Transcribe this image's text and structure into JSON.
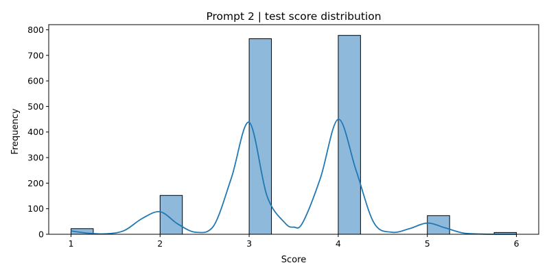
{
  "chart_data": {
    "type": "bar",
    "title": "Prompt 2 | test score distribution",
    "xlabel": "Score",
    "ylabel": "Frequency",
    "xlim": [
      0.75,
      6.25
    ],
    "ylim": [
      0,
      820
    ],
    "xticks": [
      1,
      2,
      3,
      4,
      5,
      6
    ],
    "yticks": [
      0,
      100,
      200,
      300,
      400,
      500,
      600,
      700,
      800
    ],
    "bin_width": 0.25,
    "bins": [
      {
        "start": 1.0,
        "value": 22
      },
      {
        "start": 2.0,
        "value": 152
      },
      {
        "start": 3.0,
        "value": 765
      },
      {
        "start": 4.0,
        "value": 778
      },
      {
        "start": 5.0,
        "value": 73
      },
      {
        "start": 5.75,
        "value": 7
      }
    ],
    "kde": {
      "name": "",
      "x": [
        1.0,
        1.2,
        1.4,
        1.6,
        1.8,
        2.0,
        2.2,
        2.4,
        2.6,
        2.8,
        3.0,
        3.2,
        3.4,
        3.5,
        3.6,
        3.8,
        4.0,
        4.2,
        4.4,
        4.6,
        4.8,
        5.0,
        5.2,
        5.4,
        5.6,
        5.8,
        6.0
      ],
      "y": [
        13,
        4,
        2,
        15,
        62,
        88,
        40,
        8,
        32,
        220,
        438,
        150,
        45,
        28,
        45,
        220,
        450,
        250,
        45,
        8,
        22,
        44,
        25,
        5,
        1,
        0,
        0
      ]
    },
    "grid": false,
    "colors": {
      "bar_fill": "#8eb9db",
      "bar_edge": "#000000",
      "kde_line": "#1f77b4"
    }
  }
}
